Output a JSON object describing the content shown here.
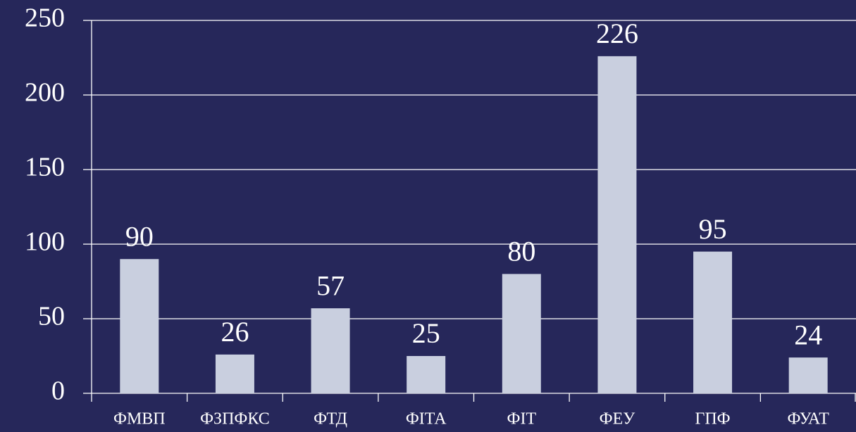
{
  "chart_data": {
    "type": "bar",
    "categories": [
      "ФМВП",
      "ФЗПФКС",
      "ФТД",
      "ФІТА",
      "ФІТ",
      "ФЕУ",
      "ГПФ",
      "ФУАТ"
    ],
    "values": [
      90,
      26,
      57,
      25,
      80,
      226,
      95,
      24
    ],
    "color": "#c9cfdf",
    "ylim": [
      0,
      250
    ],
    "yticks": [
      0,
      50,
      100,
      150,
      200,
      250
    ],
    "grid": true
  }
}
